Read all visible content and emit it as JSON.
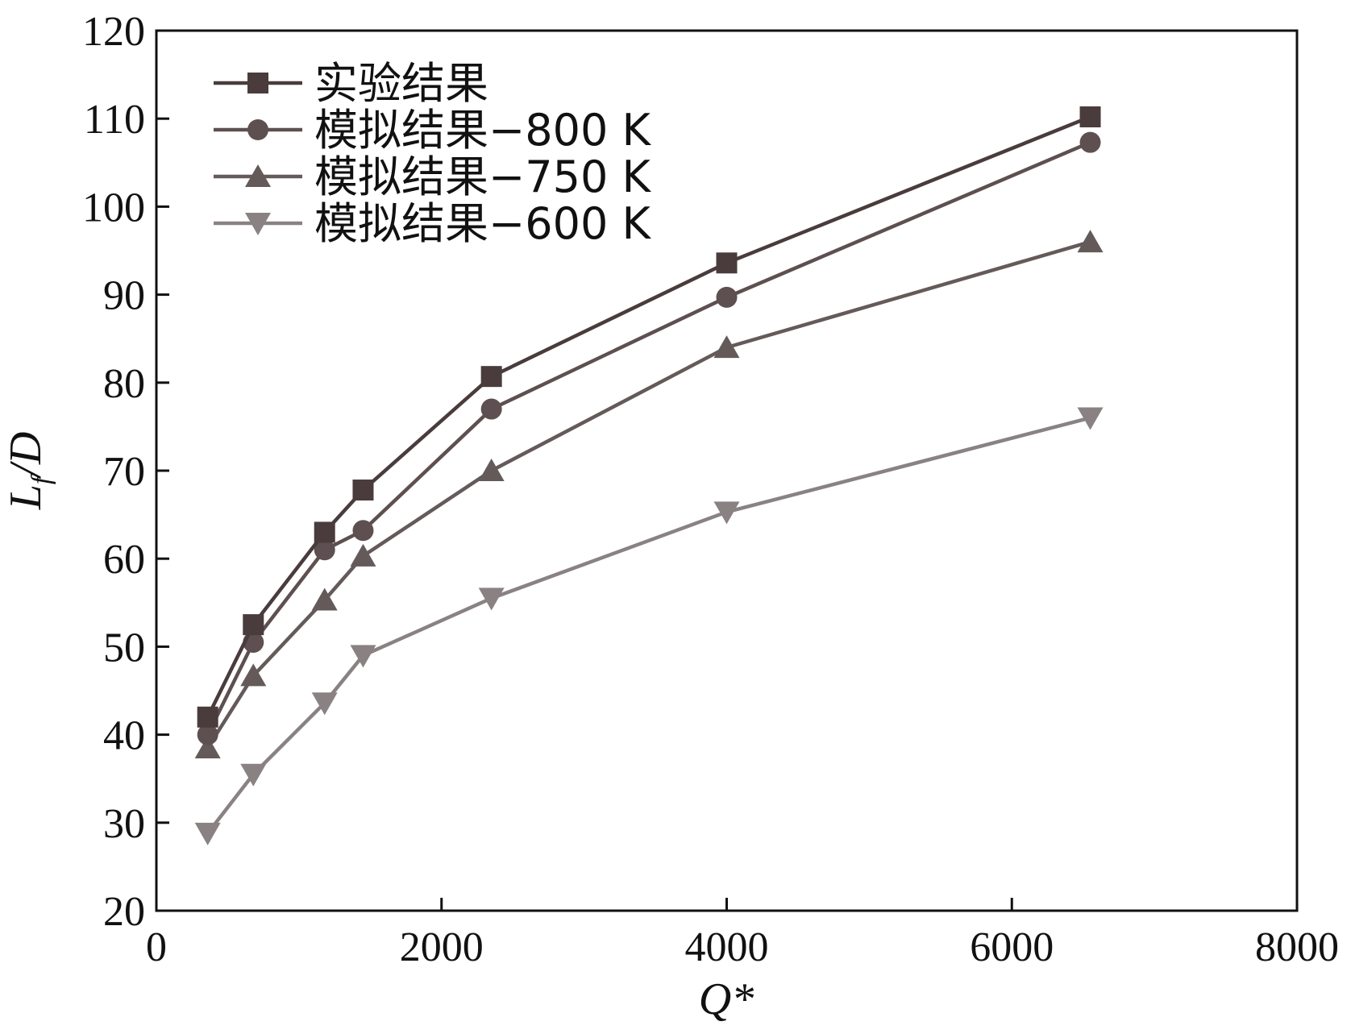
{
  "chart_data": {
    "type": "line",
    "title": "",
    "xlabel": "Q*",
    "ylabel": {
      "main": "L",
      "sub": "f",
      "rest": "/D"
    },
    "xlim": [
      0,
      8000
    ],
    "ylim": [
      20,
      120
    ],
    "xticks": [
      0,
      2000,
      4000,
      6000,
      8000
    ],
    "yticks": [
      20,
      30,
      40,
      50,
      60,
      70,
      80,
      90,
      100,
      110,
      120
    ],
    "legend_position": "top-left",
    "grid": false,
    "x": [
      360,
      680,
      1180,
      1450,
      2350,
      4000,
      6550
    ],
    "series": [
      {
        "name": "实验结果",
        "marker": "square",
        "color": "#4a3c3c",
        "values": [
          42,
          52.5,
          63,
          67.8,
          80.7,
          93.6,
          110.2
        ]
      },
      {
        "name": "模拟结果−800 K",
        "marker": "circle",
        "color": "#5e5050",
        "values": [
          40,
          50.5,
          61,
          63.2,
          77,
          89.7,
          107.3
        ]
      },
      {
        "name": "模拟结果−750 K",
        "marker": "triangle-up",
        "color": "#655a5a",
        "values": [
          38.5,
          46.7,
          55.3,
          60.3,
          70,
          84,
          96
        ]
      },
      {
        "name": "模拟结果−600 K",
        "marker": "triangle-down",
        "color": "#8a8282",
        "values": [
          28.8,
          35.5,
          43.6,
          49,
          55.5,
          65.3,
          76
        ]
      }
    ]
  }
}
